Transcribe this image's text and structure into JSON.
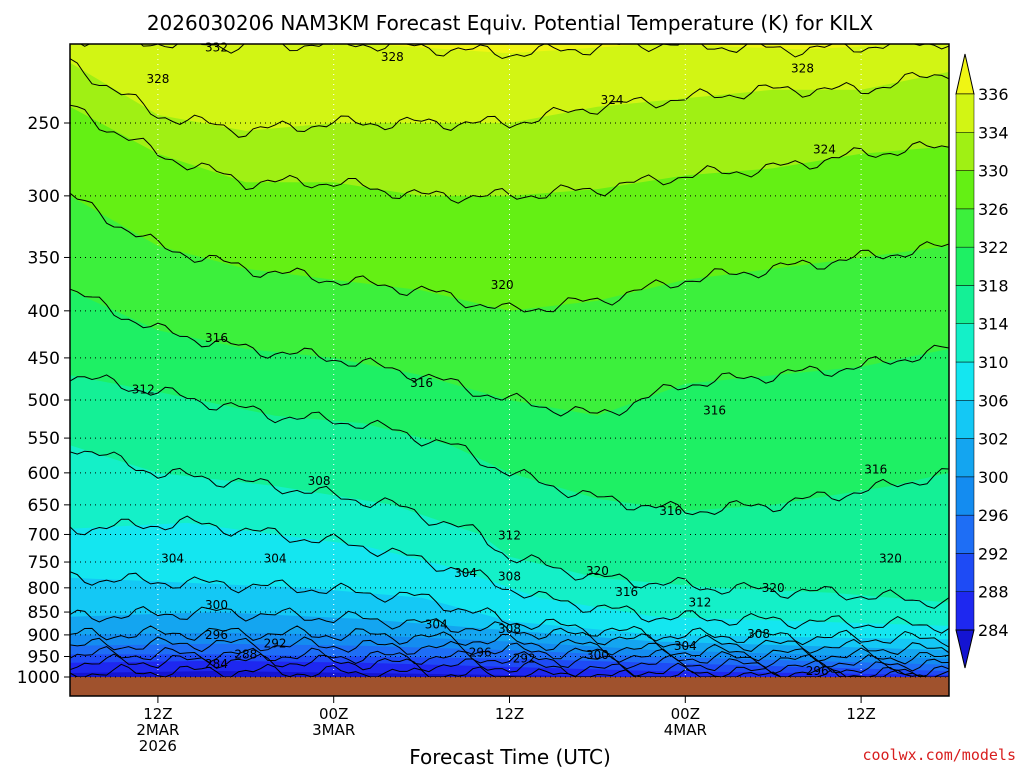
{
  "title": "2026030206 NAM3KM Forecast Equiv. Potential Temperature (K) for KILX",
  "watermark": "coolwx.com/models",
  "chart_data": {
    "type": "contour",
    "variable": "Equivalent Potential Temperature (K)",
    "xlabel": "Forecast Time (UTC)",
    "ylabel": "",
    "y_scale": "log-pressure",
    "ylim": [
      1000,
      200
    ],
    "xlim_hours_from_init": [
      0,
      60
    ],
    "x_ticks": [
      {
        "hour": 6,
        "lines": [
          "12Z",
          "2MAR",
          "2026"
        ]
      },
      {
        "hour": 18,
        "lines": [
          "00Z",
          "3MAR"
        ]
      },
      {
        "hour": 30,
        "lines": [
          "12Z"
        ]
      },
      {
        "hour": 42,
        "lines": [
          "00Z",
          "4MAR"
        ]
      },
      {
        "hour": 54,
        "lines": [
          "12Z"
        ]
      }
    ],
    "y_ticks": [
      250,
      300,
      350,
      400,
      450,
      500,
      550,
      600,
      650,
      700,
      750,
      800,
      850,
      900,
      950,
      1000
    ],
    "grid": "dotted",
    "colorbar": {
      "orientation": "vertical",
      "placement": "right",
      "levels": [
        284,
        288,
        292,
        296,
        300,
        302,
        306,
        310,
        314,
        318,
        322,
        326,
        330,
        334,
        336
      ],
      "colors": [
        "#1414d2",
        "#1e28f0",
        "#1e4bf5",
        "#1e6ef5",
        "#148cf0",
        "#14a5f0",
        "#14c8f5",
        "#14e6f0",
        "#14f0c8",
        "#14f096",
        "#1ef064",
        "#3cf03c",
        "#64f014",
        "#a0f014",
        "#d2f514",
        "#f0f514"
      ]
    },
    "contour_labels": [
      {
        "text": "332",
        "hour": 10.0,
        "p": 207
      },
      {
        "text": "328",
        "hour": 6.0,
        "p": 224
      },
      {
        "text": "328",
        "hour": 22.0,
        "p": 212
      },
      {
        "text": "328",
        "hour": 50.0,
        "p": 218
      },
      {
        "text": "324",
        "hour": 37.0,
        "p": 236
      },
      {
        "text": "324",
        "hour": 51.5,
        "p": 267
      },
      {
        "text": "320",
        "hour": 29.5,
        "p": 375
      },
      {
        "text": "316",
        "hour": 10.0,
        "p": 428
      },
      {
        "text": "316",
        "hour": 24.0,
        "p": 479
      },
      {
        "text": "316",
        "hour": 44.0,
        "p": 513
      },
      {
        "text": "316",
        "hour": 55.0,
        "p": 595
      },
      {
        "text": "316",
        "hour": 41.0,
        "p": 660
      },
      {
        "text": "316",
        "hour": 38.0,
        "p": 808
      },
      {
        "text": "312",
        "hour": 5.0,
        "p": 487
      },
      {
        "text": "312",
        "hour": 30.0,
        "p": 702
      },
      {
        "text": "312",
        "hour": 43.0,
        "p": 830
      },
      {
        "text": "308",
        "hour": 17.0,
        "p": 612
      },
      {
        "text": "308",
        "hour": 30.0,
        "p": 778
      },
      {
        "text": "308",
        "hour": 30.0,
        "p": 887
      },
      {
        "text": "308",
        "hour": 47.0,
        "p": 898
      },
      {
        "text": "304",
        "hour": 7.0,
        "p": 743
      },
      {
        "text": "304",
        "hour": 14.0,
        "p": 743
      },
      {
        "text": "304",
        "hour": 27.0,
        "p": 771
      },
      {
        "text": "304",
        "hour": 25.0,
        "p": 877
      },
      {
        "text": "304",
        "hour": 42.0,
        "p": 925
      },
      {
        "text": "320",
        "hour": 36.0,
        "p": 767
      },
      {
        "text": "320",
        "hour": 48.0,
        "p": 800
      },
      {
        "text": "320",
        "hour": 56.0,
        "p": 743
      },
      {
        "text": "300",
        "hour": 10.0,
        "p": 835
      },
      {
        "text": "300",
        "hour": 36.0,
        "p": 947
      },
      {
        "text": "296",
        "hour": 10.0,
        "p": 900
      },
      {
        "text": "296",
        "hour": 28.0,
        "p": 940
      },
      {
        "text": "296",
        "hour": 51.0,
        "p": 985
      },
      {
        "text": "292",
        "hour": 14.0,
        "p": 920
      },
      {
        "text": "292",
        "hour": 31.0,
        "p": 955
      },
      {
        "text": "288",
        "hour": 12.0,
        "p": 945
      },
      {
        "text": "284",
        "hour": 10.0,
        "p": 968
      }
    ]
  }
}
